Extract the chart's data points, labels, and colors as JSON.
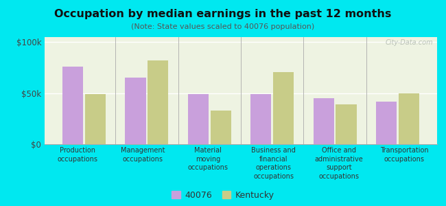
{
  "title": "Occupation by median earnings in the past 12 months",
  "subtitle": "(Note: State values scaled to 40076 population)",
  "categories": [
    "Production\noccupations",
    "Management\noccupations",
    "Material\nmoving\noccupations",
    "Business and\nfinancial\noperations\noccupations",
    "Office and\nadministrative\nsupport\noccupations",
    "Transportation\noccupations"
  ],
  "values_40076": [
    76000,
    65000,
    49000,
    49000,
    45000,
    42000
  ],
  "values_kentucky": [
    49000,
    82000,
    33000,
    71000,
    39000,
    50000
  ],
  "color_40076": "#c9a0dc",
  "color_kentucky": "#c8cc88",
  "background_fig": "#00e8f0",
  "yticks": [
    0,
    50000,
    100000
  ],
  "ylabels": [
    "$0",
    "$50k",
    "$100k"
  ],
  "ylim": [
    0,
    105000
  ],
  "legend_label_40076": "40076",
  "legend_label_kentucky": "Kentucky",
  "watermark": "City-Data.com"
}
